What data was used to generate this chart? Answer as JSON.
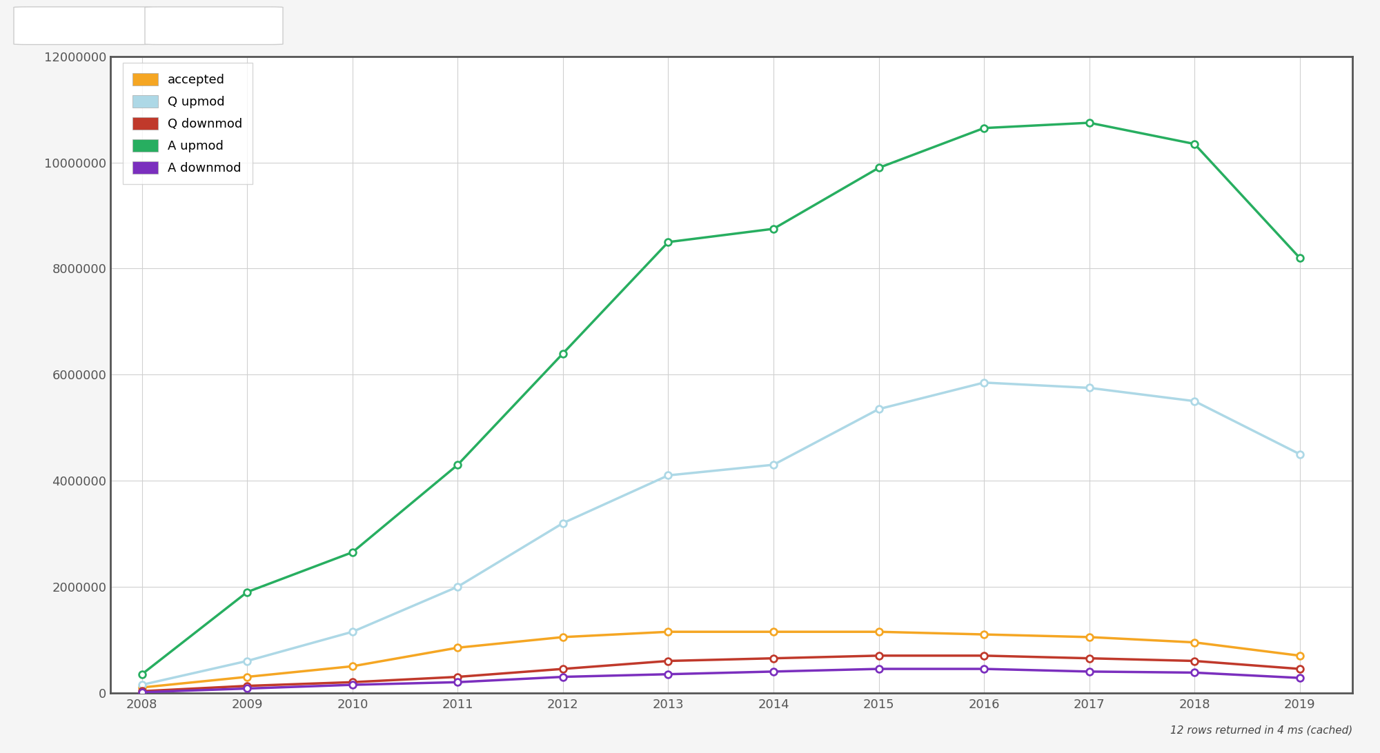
{
  "years": [
    2008,
    2009,
    2010,
    2011,
    2012,
    2013,
    2014,
    2015,
    2016,
    2017,
    2018,
    2019
  ],
  "series": {
    "accepted": {
      "color": "#F5A623",
      "values": [
        100000,
        300000,
        500000,
        850000,
        1050000,
        1150000,
        1150000,
        1150000,
        1100000,
        1050000,
        950000,
        700000
      ]
    },
    "Q upmod": {
      "color": "#ADD8E6",
      "values": [
        150000,
        600000,
        1150000,
        2000000,
        3200000,
        4100000,
        4300000,
        5350000,
        5850000,
        5750000,
        5500000,
        4500000
      ]
    },
    "Q downmod": {
      "color": "#C0392B",
      "values": [
        30000,
        130000,
        200000,
        300000,
        450000,
        600000,
        650000,
        700000,
        700000,
        650000,
        600000,
        450000
      ]
    },
    "A upmod": {
      "color": "#27AE60",
      "values": [
        350000,
        1900000,
        2650000,
        4300000,
        6400000,
        8500000,
        8750000,
        9900000,
        10650000,
        10750000,
        10350000,
        8200000
      ]
    },
    "A downmod": {
      "color": "#7B2FBE",
      "values": [
        10000,
        80000,
        150000,
        200000,
        300000,
        350000,
        400000,
        450000,
        450000,
        400000,
        380000,
        280000
      ]
    }
  },
  "ylim": [
    0,
    12000000
  ],
  "yticks": [
    0,
    2000000,
    4000000,
    6000000,
    8000000,
    10000000,
    12000000
  ],
  "background_color": "#ffffff",
  "plot_bg_color": "#ffffff",
  "grid_color": "#d0d0d0",
  "axis_color": "#555555",
  "border_color": "#555555",
  "footer_text": "12 rows returned in 4 ms (cached)",
  "top_bar_color": "#f0f0f0",
  "top_bar_height": 0.06
}
